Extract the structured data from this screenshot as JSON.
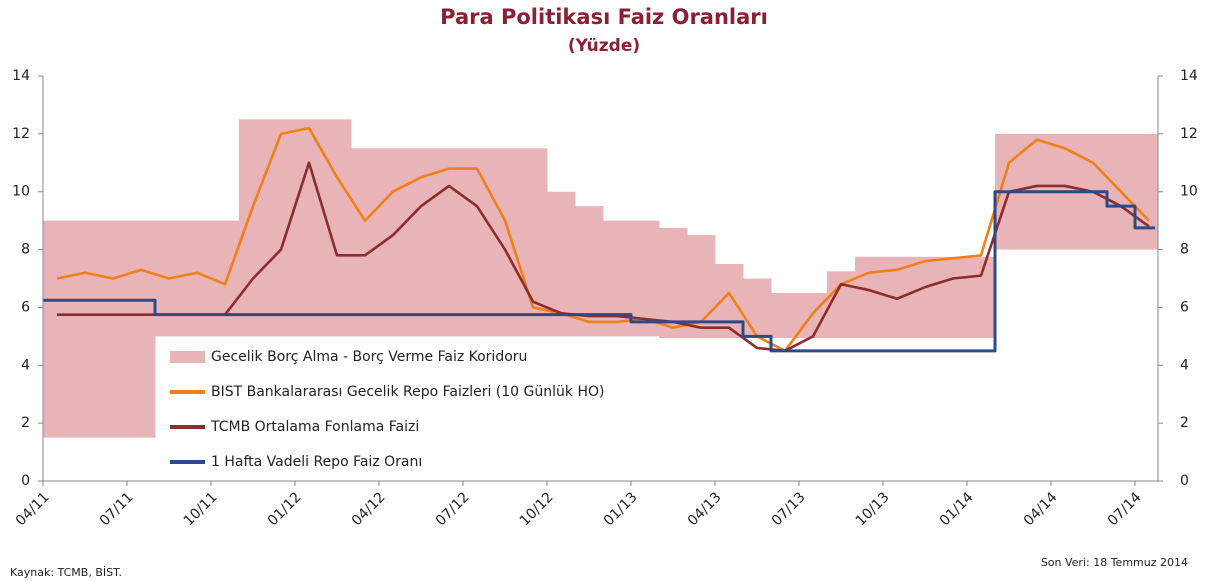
{
  "chart_data": {
    "type": "line",
    "title": "Para Politikası Faiz Oranları",
    "subtitle": "(Yüzde)",
    "source": "Kaynak: TCMB, BİST.",
    "note": "Son Veri: 18 Temmuz 2014",
    "categories": [
      "04/11",
      null,
      null,
      "07/11",
      null,
      null,
      "10/11",
      null,
      null,
      "01/12",
      null,
      null,
      "04/12",
      null,
      null,
      "07/12",
      null,
      null,
      "10/12",
      null,
      null,
      "01/13",
      null,
      null,
      "04/13",
      null,
      null,
      "07/13",
      null,
      null,
      "10/13",
      null,
      null,
      "01/14",
      null,
      null,
      "04/14",
      null,
      null,
      "07/14"
    ],
    "ylim": [
      0,
      14
    ],
    "yticks": [
      0,
      2,
      4,
      6,
      8,
      10,
      12,
      14
    ],
    "grid": false,
    "legend": "inside",
    "series": [
      {
        "name": "Gecelik Borç Alma - Borç Verme Faiz Koridoru",
        "color": "#e8b4b8",
        "style": "band",
        "values": [
          9,
          9,
          9,
          9,
          9,
          9,
          9,
          12.5,
          12.5,
          12.5,
          12.5,
          11.5,
          11.5,
          11.5,
          11.5,
          11.5,
          11.5,
          11.5,
          10,
          9.5,
          9,
          9,
          8.75,
          8.5,
          7.5,
          7,
          6.5,
          6.5,
          7.25,
          7.75,
          7.75,
          7.75,
          7.75,
          7.75,
          12,
          12,
          12,
          12,
          12,
          12
        ],
        "low": [
          1.5,
          1.5,
          1.5,
          1.5,
          5,
          5,
          5,
          5,
          5,
          5,
          5,
          5,
          5,
          5,
          5,
          5,
          5,
          5,
          5,
          5,
          5,
          5,
          4.75,
          4.5,
          4.5,
          4,
          3.5,
          3.5,
          3.5,
          3.5,
          3.5,
          3.5,
          3.5,
          3.5,
          8,
          8,
          8,
          8,
          8,
          8
        ]
      },
      {
        "name": "BIST Bankalararası Gecelik Repo Faizleri (10 Günlük HO)",
        "color": "#f07f18",
        "style": "line",
        "values": [
          7.0,
          7.2,
          7.0,
          7.3,
          7.0,
          7.2,
          6.8,
          9.5,
          12.0,
          12.2,
          10.5,
          9.0,
          10.0,
          10.5,
          10.8,
          10.8,
          9.0,
          6.0,
          5.8,
          5.5,
          5.5,
          5.6,
          5.3,
          5.5,
          6.5,
          5.0,
          4.5,
          5.8,
          6.8,
          7.2,
          7.3,
          7.6,
          7.7,
          7.8,
          11.0,
          11.8,
          11.5,
          11.0,
          10.0,
          9.0
        ]
      },
      {
        "name": "TCMB Ortalama Fonlama Faizi",
        "color": "#8c2d2d",
        "style": "line",
        "values": [
          5.75,
          5.75,
          5.75,
          5.75,
          5.75,
          5.75,
          5.75,
          7.0,
          8.0,
          11.0,
          7.8,
          7.8,
          8.5,
          9.5,
          10.2,
          9.5,
          8.0,
          6.2,
          5.8,
          5.7,
          5.7,
          5.6,
          5.5,
          5.3,
          5.3,
          4.6,
          4.5,
          5.0,
          6.8,
          6.6,
          6.3,
          6.7,
          7.0,
          7.1,
          10.0,
          10.2,
          10.2,
          10.0,
          9.5,
          8.8
        ]
      },
      {
        "name": "1 Hafta Vadeli Repo Faiz Oranı",
        "color": "#2b4a8c",
        "style": "step",
        "values": [
          6.25,
          6.25,
          6.25,
          6.25,
          5.75,
          5.75,
          5.75,
          5.75,
          5.75,
          5.75,
          5.75,
          5.75,
          5.75,
          5.75,
          5.75,
          5.75,
          5.75,
          5.75,
          5.75,
          5.75,
          5.75,
          5.5,
          5.5,
          5.5,
          5.5,
          5.0,
          4.5,
          4.5,
          4.5,
          4.5,
          4.5,
          4.5,
          4.5,
          4.5,
          10,
          10,
          10,
          10,
          9.5,
          8.75
        ]
      }
    ]
  }
}
